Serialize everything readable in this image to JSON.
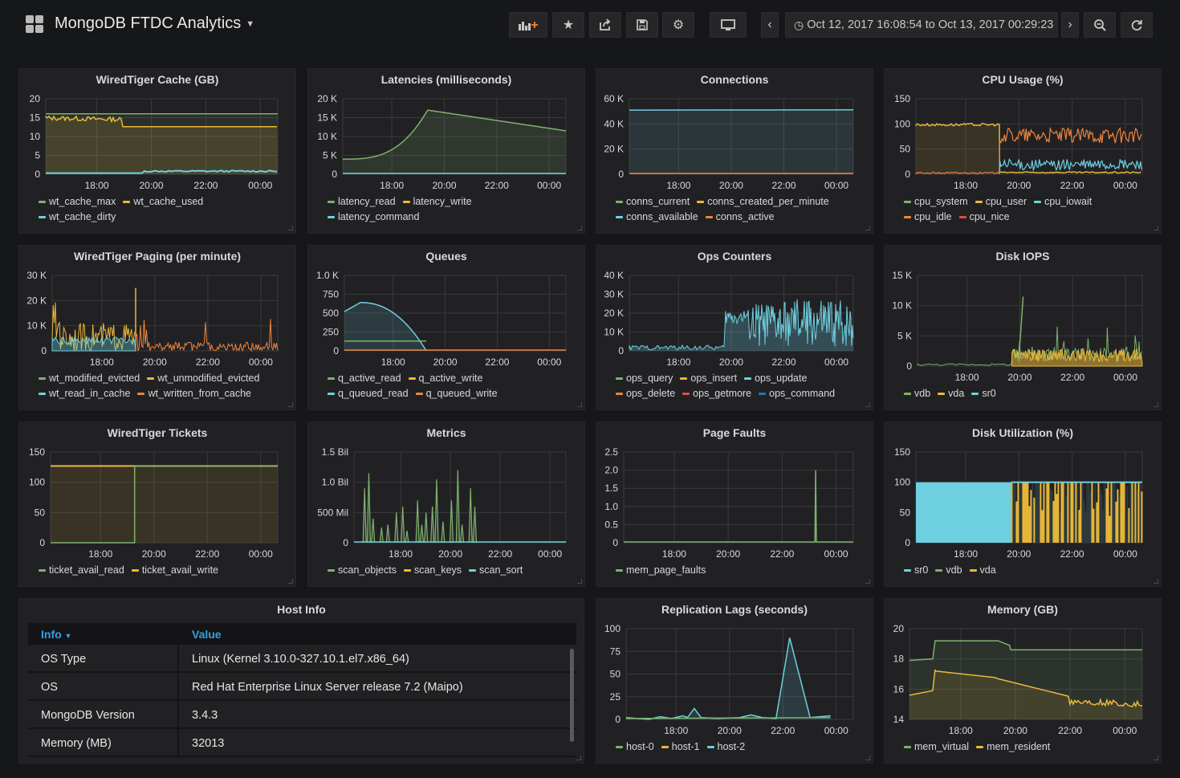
{
  "dashboard": {
    "title": "MongoDB FTDC Analytics",
    "time_range": "Oct 12, 2017 16:08:54 to Oct 13, 2017 00:29:23",
    "toolbar_icons": [
      "add-panel-icon",
      "star-icon",
      "share-icon",
      "save-icon",
      "settings-icon",
      "tv-mode-icon",
      "chevron-left-icon",
      "clock-icon",
      "chevron-right-icon",
      "zoom-out-icon",
      "refresh-icon"
    ]
  },
  "colors": {
    "green": "#7eb26d",
    "yellow": "#eab839",
    "cyan": "#6ed0e0",
    "orange": "#ef843c",
    "red": "#e24d42",
    "blue": "#1f78c1",
    "background": "#161719",
    "panel": "#212124",
    "link": "#33a2e5"
  },
  "panels": [
    {
      "id": "p1",
      "title": "WiredTiger Cache (GB)",
      "y_ticks": [
        "20",
        "15",
        "10",
        "5",
        "0"
      ],
      "x_ticks": [
        "18:00",
        "20:00",
        "22:00",
        "00:00"
      ],
      "legend": [
        {
          "label": "wt_cache_max",
          "color": "green"
        },
        {
          "label": "wt_cache_used",
          "color": "yellow"
        },
        {
          "label": "wt_cache_dirty",
          "color": "cyan"
        }
      ]
    },
    {
      "id": "p2",
      "title": "Latencies (milliseconds)",
      "y_ticks": [
        "20 K",
        "15 K",
        "10 K",
        "5 K",
        "0"
      ],
      "x_ticks": [
        "18:00",
        "20:00",
        "22:00",
        "00:00"
      ],
      "legend": [
        {
          "label": "latency_read",
          "color": "green"
        },
        {
          "label": "latency_write",
          "color": "yellow"
        },
        {
          "label": "latency_command",
          "color": "cyan"
        }
      ]
    },
    {
      "id": "p3",
      "title": "Connections",
      "y_ticks": [
        "60 K",
        "40 K",
        "20 K",
        "0"
      ],
      "x_ticks": [
        "18:00",
        "20:00",
        "22:00",
        "00:00"
      ],
      "legend": [
        {
          "label": "conns_current",
          "color": "green"
        },
        {
          "label": "conns_created_per_minute",
          "color": "yellow"
        },
        {
          "label": "conns_available",
          "color": "cyan"
        },
        {
          "label": "conns_active",
          "color": "orange"
        }
      ]
    },
    {
      "id": "p4",
      "title": "CPU Usage (%)",
      "y_ticks": [
        "150",
        "100",
        "50",
        "0"
      ],
      "x_ticks": [
        "18:00",
        "20:00",
        "22:00",
        "00:00"
      ],
      "legend": [
        {
          "label": "cpu_system",
          "color": "green"
        },
        {
          "label": "cpu_user",
          "color": "yellow"
        },
        {
          "label": "cpu_iowait",
          "color": "cyan"
        },
        {
          "label": "cpu_idle",
          "color": "orange"
        },
        {
          "label": "cpu_nice",
          "color": "red"
        }
      ]
    },
    {
      "id": "p5",
      "title": "WiredTiger Paging (per minute)",
      "y_ticks": [
        "30 K",
        "20 K",
        "10 K",
        "0"
      ],
      "x_ticks": [
        "18:00",
        "20:00",
        "22:00",
        "00:00"
      ],
      "legend": [
        {
          "label": "wt_modified_evicted",
          "color": "green"
        },
        {
          "label": "wt_unmodified_evicted",
          "color": "yellow"
        },
        {
          "label": "wt_read_in_cache",
          "color": "cyan"
        },
        {
          "label": "wt_written_from_cache",
          "color": "orange"
        }
      ]
    },
    {
      "id": "p6",
      "title": "Queues",
      "y_ticks": [
        "1.0 K",
        "750",
        "500",
        "250",
        "0"
      ],
      "x_ticks": [
        "18:00",
        "20:00",
        "22:00",
        "00:00"
      ],
      "legend": [
        {
          "label": "q_active_read",
          "color": "green"
        },
        {
          "label": "q_active_write",
          "color": "yellow"
        },
        {
          "label": "q_queued_read",
          "color": "cyan"
        },
        {
          "label": "q_queued_write",
          "color": "orange"
        }
      ]
    },
    {
      "id": "p7",
      "title": "Ops Counters",
      "y_ticks": [
        "40 K",
        "30 K",
        "20 K",
        "10 K",
        "0"
      ],
      "x_ticks": [
        "18:00",
        "20:00",
        "22:00",
        "00:00"
      ],
      "legend": [
        {
          "label": "ops_query",
          "color": "green"
        },
        {
          "label": "ops_insert",
          "color": "yellow"
        },
        {
          "label": "ops_update",
          "color": "cyan"
        },
        {
          "label": "ops_delete",
          "color": "orange"
        },
        {
          "label": "ops_getmore",
          "color": "red"
        },
        {
          "label": "ops_command",
          "color": "blue"
        }
      ]
    },
    {
      "id": "p8",
      "title": "Disk IOPS",
      "y_ticks": [
        "15 K",
        "10 K",
        "5 K",
        "0"
      ],
      "x_ticks": [
        "18:00",
        "20:00",
        "22:00",
        "00:00"
      ],
      "legend": [
        {
          "label": "vdb",
          "color": "green"
        },
        {
          "label": "vda",
          "color": "yellow"
        },
        {
          "label": "sr0",
          "color": "cyan"
        }
      ]
    },
    {
      "id": "p9",
      "title": "WiredTiger Tickets",
      "y_ticks": [
        "150",
        "100",
        "50",
        "0"
      ],
      "x_ticks": [
        "18:00",
        "20:00",
        "22:00",
        "00:00"
      ],
      "legend": [
        {
          "label": "ticket_avail_read",
          "color": "green"
        },
        {
          "label": "ticket_avail_write",
          "color": "yellow"
        }
      ]
    },
    {
      "id": "p10",
      "title": "Metrics",
      "y_ticks": [
        "1.5 Bil",
        "1.0 Bil",
        "500 Mil",
        "0"
      ],
      "x_ticks": [
        "18:00",
        "20:00",
        "22:00",
        "00:00"
      ],
      "legend": [
        {
          "label": "scan_objects",
          "color": "green"
        },
        {
          "label": "scan_keys",
          "color": "yellow"
        },
        {
          "label": "scan_sort",
          "color": "cyan"
        }
      ]
    },
    {
      "id": "p11",
      "title": "Page Faults",
      "y_ticks": [
        "2.5",
        "2.0",
        "1.5",
        "1.0",
        "0.5",
        "0"
      ],
      "x_ticks": [
        "18:00",
        "20:00",
        "22:00",
        "00:00"
      ],
      "legend": [
        {
          "label": "mem_page_faults",
          "color": "green"
        }
      ]
    },
    {
      "id": "p12",
      "title": "Disk Utilization (%)",
      "y_ticks": [
        "150",
        "100",
        "50",
        "0"
      ],
      "x_ticks": [
        "18:00",
        "20:00",
        "22:00",
        "00:00"
      ],
      "legend": [
        {
          "label": "sr0",
          "color": "cyan"
        },
        {
          "label": "vdb",
          "color": "green"
        },
        {
          "label": "vda",
          "color": "yellow"
        }
      ]
    },
    {
      "id": "p14",
      "title": "Replication Lags (seconds)",
      "y_ticks": [
        "100",
        "75",
        "50",
        "25",
        "0"
      ],
      "x_ticks": [
        "18:00",
        "20:00",
        "22:00",
        "00:00"
      ],
      "legend": [
        {
          "label": "host-0",
          "color": "green"
        },
        {
          "label": "host-1",
          "color": "yellow"
        },
        {
          "label": "host-2",
          "color": "cyan"
        }
      ]
    },
    {
      "id": "p15",
      "title": "Memory (GB)",
      "y_ticks": [
        "20",
        "18",
        "16",
        "14"
      ],
      "x_ticks": [
        "18:00",
        "20:00",
        "22:00",
        "00:00"
      ],
      "legend": [
        {
          "label": "mem_virtual",
          "color": "green"
        },
        {
          "label": "mem_resident",
          "color": "yellow"
        }
      ]
    }
  ],
  "host_info": {
    "title": "Host Info",
    "col_info": "Info",
    "col_value": "Value",
    "rows": [
      {
        "info": "OS Type",
        "value": "Linux (Kernel 3.10.0-327.10.1.el7.x86_64)"
      },
      {
        "info": "OS",
        "value": "Red Hat Enterprise Linux Server release 7.2 (Maipo)"
      },
      {
        "info": "MongoDB Version",
        "value": "3.4.3"
      },
      {
        "info": "Memory (MB)",
        "value": "32013"
      }
    ]
  }
}
